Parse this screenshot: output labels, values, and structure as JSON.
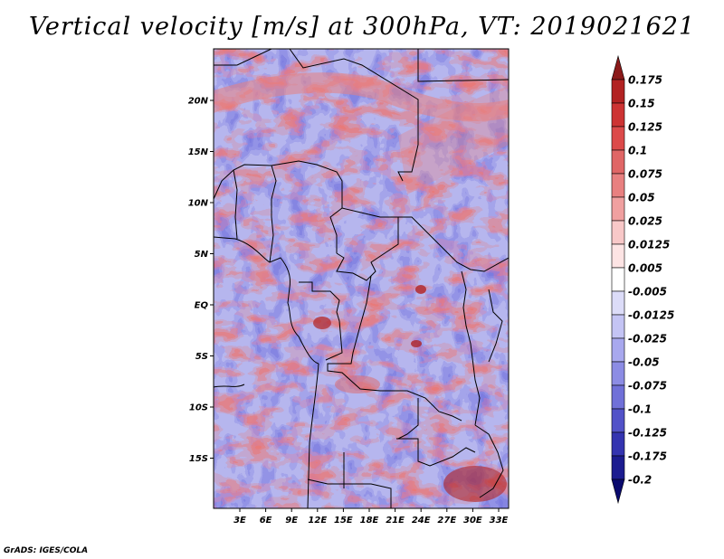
{
  "title": "Vertical velocity [m/s] at 300hPa, VT: 2019021621",
  "credit": "GrADS: IGES/COLA",
  "map": {
    "lon_range": [
      0,
      35
    ],
    "lat_range": [
      -20,
      25
    ],
    "lon_ticks": [
      "3E",
      "6E",
      "9E",
      "12E",
      "15E",
      "18E",
      "21E",
      "24E",
      "27E",
      "30E",
      "33E"
    ],
    "lat_ticks": [
      "20N",
      "15N",
      "10N",
      "5N",
      "EQ",
      "5S",
      "10S",
      "15S"
    ]
  },
  "colorbar": {
    "levels": [
      "0.175",
      "0.15",
      "0.125",
      "0.1",
      "0.075",
      "0.05",
      "0.025",
      "0.0125",
      "0.005",
      "-0.005",
      "-0.0125",
      "-0.025",
      "-0.05",
      "-0.075",
      "-0.1",
      "-0.125",
      "-0.175",
      "-0.2"
    ],
    "colors": [
      "#8b1a1a",
      "#b22222",
      "#cd3333",
      "#dc4a4a",
      "#e06666",
      "#e88080",
      "#f0a0a0",
      "#f8c8c8",
      "#fde4e4",
      "#ffffff",
      "#dcdcf8",
      "#c4c4f4",
      "#a8a8ee",
      "#8c8ce4",
      "#7070d8",
      "#5252c8",
      "#3434b0",
      "#1c1c90",
      "#0a0a6e"
    ]
  }
}
